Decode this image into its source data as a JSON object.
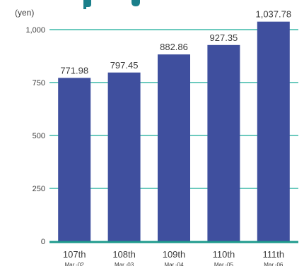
{
  "chart_data": {
    "type": "bar",
    "unit_label": "(yen)",
    "categories": [
      "107th",
      "108th",
      "109th",
      "110th",
      "111th"
    ],
    "category_sublabels": [
      "Mar.-02",
      "Mar.-03",
      "Mar.-04",
      "Mar.-05",
      "Mar.-06"
    ],
    "values": [
      771.98,
      797.45,
      882.86,
      927.35,
      1037.78
    ],
    "value_labels": [
      "771.98",
      "797.45",
      "882.86",
      "927.35",
      "1,037.78"
    ],
    "ylim": [
      0,
      1000
    ],
    "yticks": [
      0,
      250,
      500,
      750,
      1000
    ],
    "ytick_labels": [
      "0",
      "250",
      "500",
      "750",
      "1,000"
    ],
    "grid": true,
    "colors": {
      "bar": "#3f4f9e",
      "grid": "#3cb9a8",
      "baseline": "#1d9a8c",
      "title": "#1a7f8a"
    }
  }
}
